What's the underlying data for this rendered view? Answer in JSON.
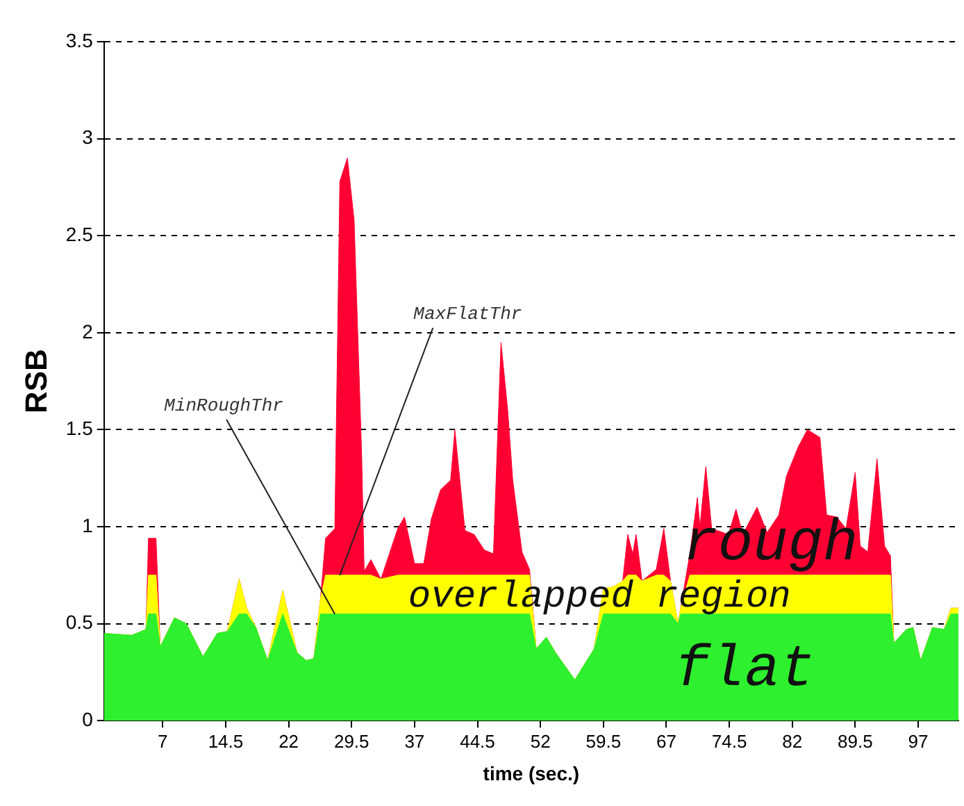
{
  "chart_data": {
    "type": "area",
    "stacked": true,
    "xlabel": "time (sec.)",
    "ylabel": "RSB",
    "x": [
      0,
      3.3,
      5.0,
      5.3,
      6.2,
      6.7,
      8.4,
      9.8,
      11.8,
      13.5,
      14.7,
      16.1,
      17,
      18.1,
      19.5,
      21.3,
      23,
      24.1,
      25,
      25.8,
      26.4,
      27.5,
      28.1,
      29,
      29.8,
      30.7,
      31,
      31.8,
      33,
      35,
      35.8,
      37,
      38.1,
      39,
      40.1,
      41.3,
      41.8,
      42.4,
      43,
      44.1,
      45.3,
      46.4,
      47.3,
      48.1,
      48.7,
      49.8,
      50.7,
      51.5,
      52.7,
      53.8,
      56.1,
      58.4,
      59.5,
      60.7,
      61.8,
      62.4,
      63,
      63.4,
      64.1,
      65.8,
      66.7,
      67.5,
      68.4,
      68.7,
      69.8,
      70.7,
      71,
      71.7,
      72.4,
      74.4,
      75.3,
      76.1,
      77.8,
      79,
      80.4,
      81.3,
      82.7,
      83.8,
      85.3,
      86.1,
      87.3,
      88.4,
      89.5,
      90.1,
      91,
      92.1,
      93,
      93.7,
      94.1,
      95.6,
      96.4,
      97.3,
      98.7,
      100.1,
      100.9,
      101.8
    ],
    "series": [
      {
        "name": "flat",
        "color": "#2ef02e",
        "values": [
          0.45,
          0.44,
          0.47,
          0.55,
          0.55,
          0.38,
          0.53,
          0.5,
          0.33,
          0.45,
          0.46,
          0.55,
          0.55,
          0.48,
          0.31,
          0.55,
          0.35,
          0.31,
          0.32,
          0.55,
          0.55,
          0.55,
          0.55,
          0.55,
          0.55,
          0.55,
          0.55,
          0.55,
          0.55,
          0.55,
          0.55,
          0.55,
          0.55,
          0.55,
          0.55,
          0.55,
          0.55,
          0.55,
          0.55,
          0.55,
          0.55,
          0.55,
          0.55,
          0.55,
          0.55,
          0.55,
          0.55,
          0.37,
          0.43,
          0.35,
          0.21,
          0.37,
          0.55,
          0.55,
          0.55,
          0.55,
          0.55,
          0.55,
          0.55,
          0.55,
          0.55,
          0.55,
          0.5,
          0.55,
          0.55,
          0.55,
          0.55,
          0.55,
          0.55,
          0.55,
          0.55,
          0.55,
          0.55,
          0.55,
          0.55,
          0.55,
          0.55,
          0.55,
          0.55,
          0.55,
          0.55,
          0.55,
          0.55,
          0.55,
          0.55,
          0.55,
          0.55,
          0.55,
          0.4,
          0.47,
          0.48,
          0.31,
          0.48,
          0.47,
          0.55,
          0.55
        ]
      },
      {
        "name": "overlapped region",
        "color": "#ffff00",
        "values": [
          0,
          0,
          0,
          0.2,
          0.2,
          0,
          0,
          0,
          0,
          0,
          0,
          0.18,
          0.03,
          0,
          0,
          0.12,
          0,
          0,
          0,
          0.08,
          0.2,
          0.2,
          0.2,
          0.2,
          0.2,
          0.2,
          0.2,
          0.2,
          0.18,
          0.2,
          0.2,
          0.2,
          0.2,
          0.2,
          0.2,
          0.2,
          0.2,
          0.2,
          0.2,
          0.2,
          0.2,
          0.2,
          0.2,
          0.2,
          0.2,
          0.2,
          0.2,
          0,
          0,
          0,
          0,
          0,
          0.13,
          0.14,
          0.17,
          0.2,
          0.2,
          0.2,
          0.17,
          0.2,
          0.2,
          0.17,
          0,
          0.03,
          0.2,
          0.2,
          0.2,
          0.2,
          0.2,
          0.2,
          0.2,
          0.2,
          0.2,
          0.2,
          0.2,
          0.2,
          0.2,
          0.2,
          0.2,
          0.2,
          0.2,
          0.2,
          0.2,
          0.2,
          0.2,
          0.2,
          0.2,
          0.2,
          0,
          0,
          0,
          0,
          0,
          0,
          0.03,
          0.03
        ]
      },
      {
        "name": "rough",
        "color": "#ff0033",
        "values": [
          0,
          0,
          0,
          0.19,
          0.19,
          0,
          0,
          0,
          0,
          0,
          0,
          0,
          0,
          0,
          0,
          0,
          0,
          0,
          0,
          0,
          0.19,
          0.24,
          2.03,
          2.15,
          1.83,
          0.62,
          0.02,
          0.08,
          0,
          0.24,
          0.3,
          0.06,
          0.06,
          0.29,
          0.44,
          0.49,
          0.75,
          0.49,
          0.23,
          0.21,
          0.13,
          0.11,
          1.2,
          0.85,
          0.49,
          0.12,
          0.03,
          0,
          0,
          0,
          0,
          0,
          0,
          0,
          0,
          0.21,
          0.11,
          0.21,
          0,
          0.03,
          0.24,
          0,
          0,
          0,
          0.11,
          0.4,
          0.25,
          0.56,
          0.24,
          0.21,
          0.34,
          0.21,
          0.35,
          0.22,
          0.31,
          0.51,
          0.66,
          0.75,
          0.71,
          0.31,
          0.3,
          0.24,
          0.53,
          0.15,
          0.12,
          0.6,
          0.15,
          0.1,
          0,
          0,
          0,
          0,
          0,
          0,
          0,
          0
        ]
      }
    ],
    "xlim": [
      0,
      101.8
    ],
    "xticks": [
      7,
      14.5,
      22,
      29.5,
      37,
      44.5,
      52,
      59.5,
      67,
      74.5,
      82,
      89.5,
      97
    ],
    "ylim": [
      0,
      3.5
    ],
    "yticks": [
      0,
      0.5,
      1,
      1.5,
      2,
      2.5,
      3,
      3.5
    ],
    "grid": "y",
    "annotations": [
      {
        "text": "MinRoughThr",
        "x": 27.5,
        "y": 0.55
      },
      {
        "text": "MaxFlatThr",
        "x": 28.1,
        "y": 0.75
      }
    ]
  }
}
